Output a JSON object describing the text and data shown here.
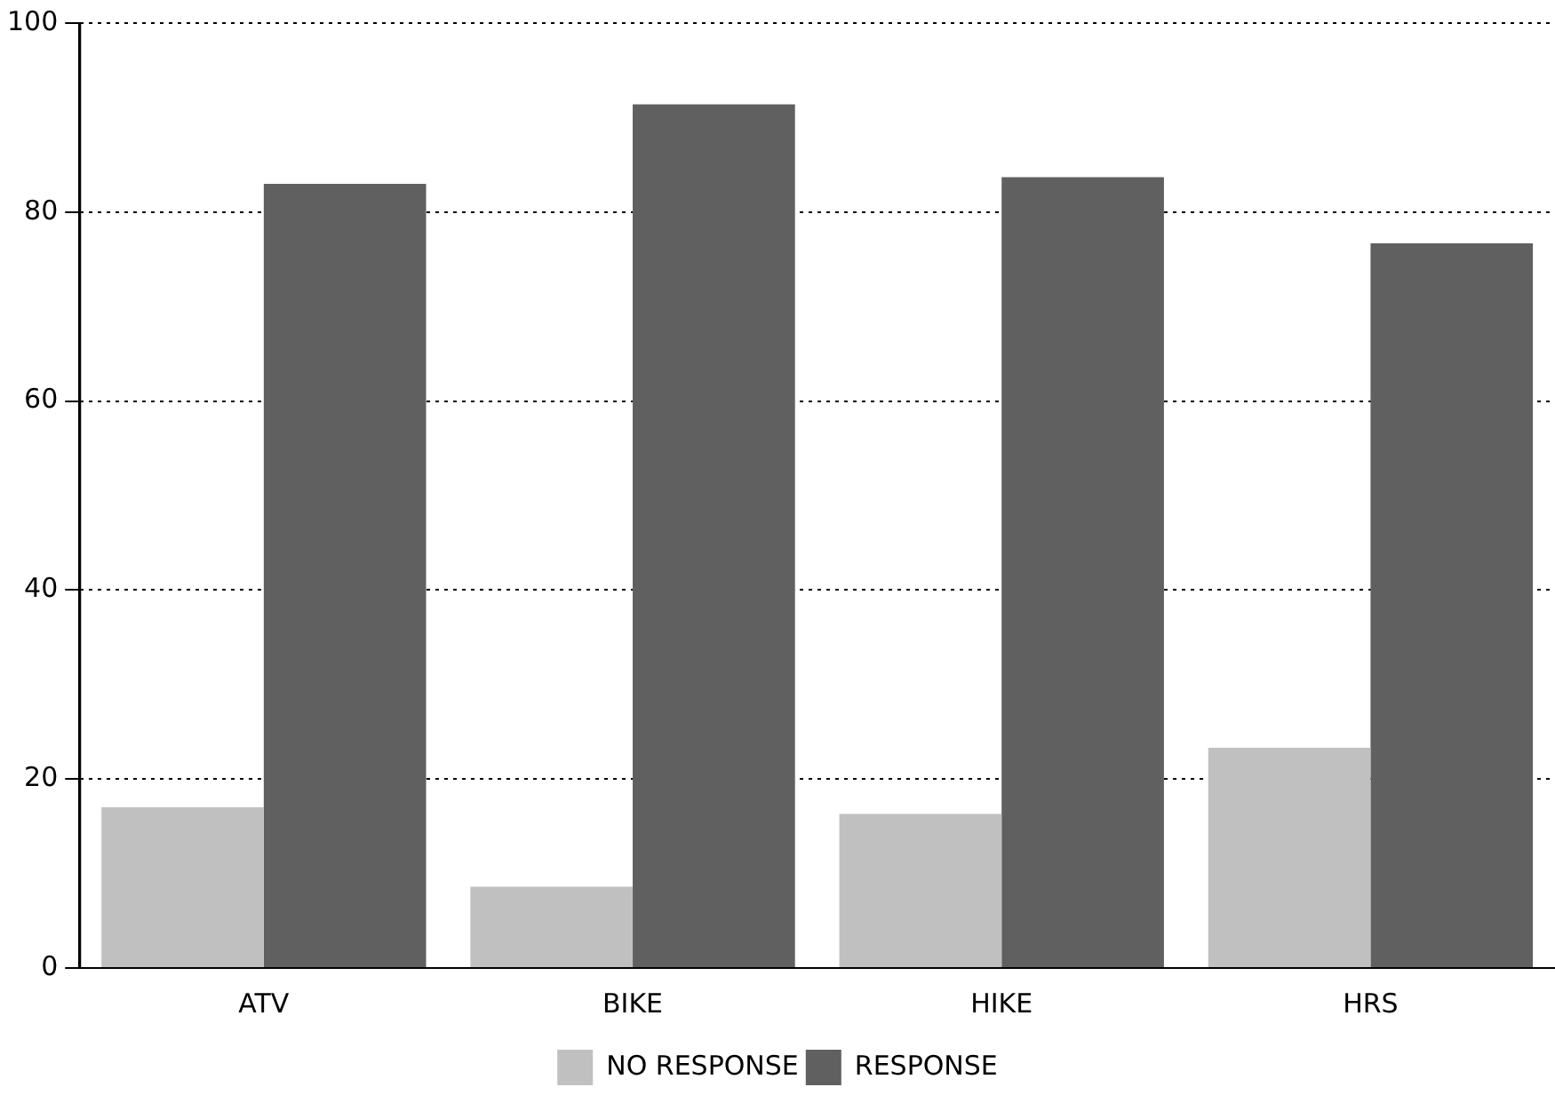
{
  "chart_data": {
    "type": "bar",
    "categories": [
      "ATV",
      "BIKE",
      "HIKE",
      "HRS"
    ],
    "series": [
      {
        "name": "NO RESPONSE",
        "color": "#c0c0c0",
        "values": [
          17,
          8.6,
          16.3,
          23.3
        ]
      },
      {
        "name": "RESPONSE",
        "color": "#606060",
        "values": [
          83,
          91.4,
          83.7,
          76.7
        ]
      }
    ],
    "ylim": [
      0,
      100
    ],
    "yticks": [
      0,
      20,
      40,
      60,
      80,
      100
    ],
    "grid": "y",
    "legend": "bottom"
  }
}
